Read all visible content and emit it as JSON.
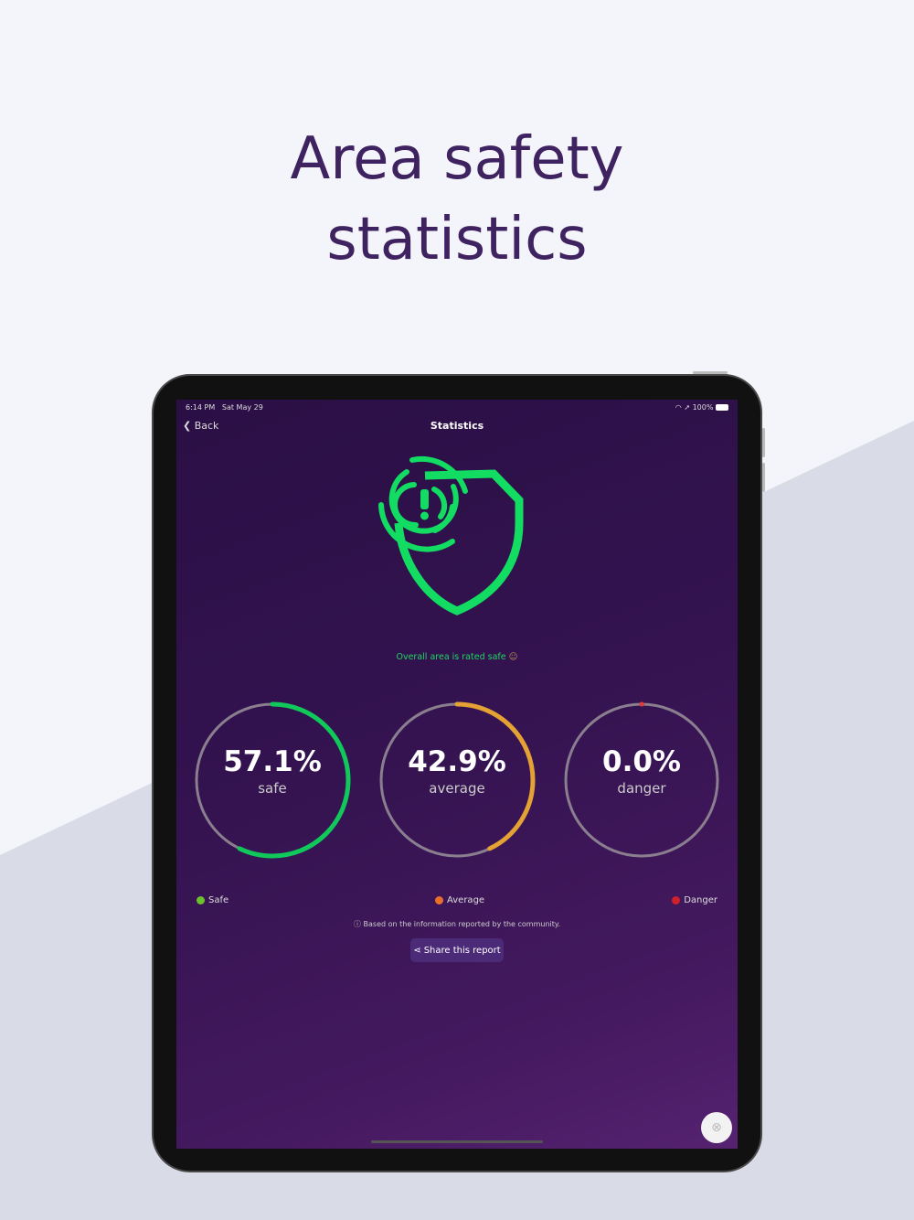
{
  "headline": {
    "line1": "Area safety",
    "line2": "statistics"
  },
  "status_bar": {
    "time": "6:14 PM",
    "date": "Sat May 29",
    "battery": "100%"
  },
  "nav": {
    "back_label": "Back",
    "title": "Statistics"
  },
  "rating": {
    "text": "Overall area is rated safe",
    "icon": "neutral-face-icon"
  },
  "gauges": [
    {
      "percent_label": "57.1%",
      "label": "safe",
      "value": 57.1,
      "color": "#10c95a"
    },
    {
      "percent_label": "42.9%",
      "label": "average",
      "value": 42.9,
      "color": "#e3a233"
    },
    {
      "percent_label": "0.0%",
      "label": "danger",
      "value": 0.0,
      "color": "#e03a3a"
    }
  ],
  "legend": [
    {
      "label": "Safe",
      "color": "#6cc22a"
    },
    {
      "label": "Average",
      "color": "#e8702a"
    },
    {
      "label": "Danger",
      "color": "#d0202a"
    }
  ],
  "note": "Based on the information reported by the community.",
  "share_label": "Share this report",
  "colors": {
    "accent": "#1ed760",
    "headline": "#3f2260"
  }
}
